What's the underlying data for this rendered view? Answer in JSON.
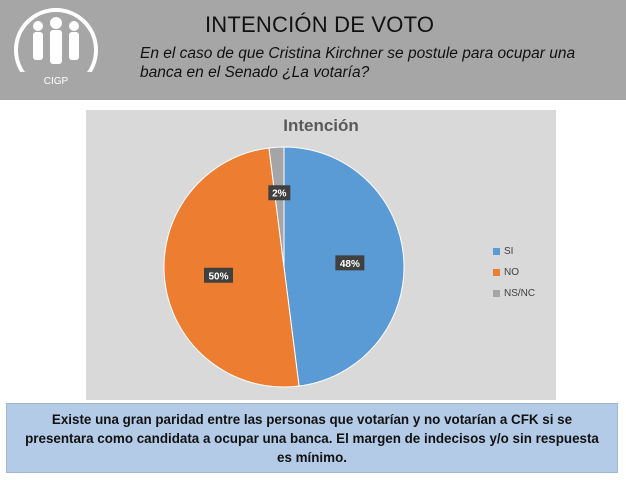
{
  "header": {
    "logo_text": "CIGP",
    "title": "INTENCIÓN DE VOTO",
    "subtitle": "En el caso de que Cristina Kirchner se postule para ocupar una banca en el Senado ¿La votaría?"
  },
  "chart_data": {
    "type": "pie",
    "title": "Intención",
    "categories": [
      "SI",
      "NO",
      "NS/NC"
    ],
    "values": [
      48,
      50,
      2
    ],
    "labels": [
      "48%",
      "50%",
      "2%"
    ],
    "colors": [
      "#5b9bd5",
      "#ed7d31",
      "#a5a5a5"
    ],
    "legend": "right"
  },
  "footer": {
    "text": "Existe una gran paridad entre las personas que votarían y no votarían a CFK si se presentara como candidata a ocupar una banca. El margen de indecisos y/o sin respuesta es mínimo."
  }
}
